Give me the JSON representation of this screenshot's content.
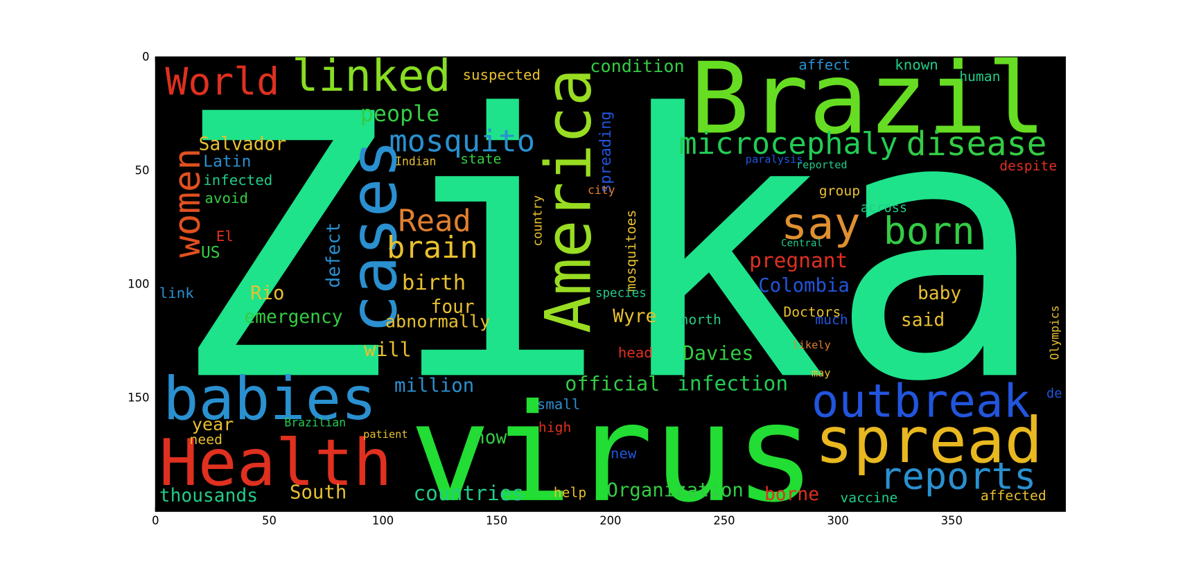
{
  "chart_data": {
    "type": "image",
    "xlim": [
      0,
      400
    ],
    "ylim": [
      0,
      200
    ],
    "y_inverted": true,
    "xticks": [
      0,
      50,
      100,
      150,
      200,
      250,
      300,
      350
    ],
    "yticks": [
      0,
      50,
      100,
      150
    ],
    "background": "#000000",
    "words": [
      {
        "text": "Zika",
        "color": "#1ee38a"
      },
      {
        "text": "virus",
        "color": "#22dd33"
      },
      {
        "text": "Brazil",
        "color": "#66dd22"
      },
      {
        "text": "Health",
        "color": "#e03020"
      },
      {
        "text": "babies",
        "color": "#2a90d0"
      },
      {
        "text": "cases",
        "color": "#2a90d0"
      },
      {
        "text": "America",
        "color": "#99dd22"
      },
      {
        "text": "spread",
        "color": "#e8b820"
      },
      {
        "text": "outbreak",
        "color": "#2255dd"
      },
      {
        "text": "reports",
        "color": "#2a90d0"
      },
      {
        "text": "linked",
        "color": "#88dd22"
      },
      {
        "text": "World",
        "color": "#e03020"
      },
      {
        "text": "mosquito",
        "color": "#2a90d0"
      },
      {
        "text": "microcephaly",
        "color": "#22cc55"
      },
      {
        "text": "disease",
        "color": "#33cc44"
      },
      {
        "text": "say",
        "color": "#e09030"
      },
      {
        "text": "born",
        "color": "#33cc44"
      },
      {
        "text": "women",
        "color": "#e05020"
      },
      {
        "text": "Read",
        "color": "#e08030"
      },
      {
        "text": "brain",
        "color": "#e8c030"
      },
      {
        "text": "people",
        "color": "#33cc44"
      },
      {
        "text": "Salvador",
        "color": "#e8c030"
      },
      {
        "text": "Latin",
        "color": "#2a90d0"
      },
      {
        "text": "infected",
        "color": "#22cc88"
      },
      {
        "text": "avoid",
        "color": "#33cc44"
      },
      {
        "text": "US",
        "color": "#33cc44"
      },
      {
        "text": "El",
        "color": "#e03020"
      },
      {
        "text": "link",
        "color": "#2a90d0"
      },
      {
        "text": "Rio",
        "color": "#e8c030"
      },
      {
        "text": "emergency",
        "color": "#33cc44"
      },
      {
        "text": "birth",
        "color": "#e8c030"
      },
      {
        "text": "four",
        "color": "#e8c030"
      },
      {
        "text": "abnormally",
        "color": "#e8c030"
      },
      {
        "text": "will",
        "color": "#e8c030"
      },
      {
        "text": "defect",
        "color": "#2a90d0"
      },
      {
        "text": "year",
        "color": "#e8c030"
      },
      {
        "text": "need",
        "color": "#e8c030"
      },
      {
        "text": "thousands",
        "color": "#22cc88"
      },
      {
        "text": "South",
        "color": "#e8c030"
      },
      {
        "text": "countries",
        "color": "#22cc88"
      },
      {
        "text": "Organization",
        "color": "#33cc44"
      },
      {
        "text": "help",
        "color": "#e8c030"
      },
      {
        "text": "borne",
        "color": "#e03020"
      },
      {
        "text": "vaccine",
        "color": "#22cc88"
      },
      {
        "text": "affected",
        "color": "#e8c030"
      },
      {
        "text": "million",
        "color": "#2a90d0"
      },
      {
        "text": "official",
        "color": "#33cc44"
      },
      {
        "text": "infection",
        "color": "#22cc55"
      },
      {
        "text": "now",
        "color": "#33cc44"
      },
      {
        "text": "high",
        "color": "#e03020"
      },
      {
        "text": "small",
        "color": "#2a90d0"
      },
      {
        "text": "new",
        "color": "#2255dd"
      },
      {
        "text": "Davies",
        "color": "#33cc44"
      },
      {
        "text": "head",
        "color": "#e03020"
      },
      {
        "text": "Wyre",
        "color": "#e8c030"
      },
      {
        "text": "said",
        "color": "#e8c030"
      },
      {
        "text": "baby",
        "color": "#e8c030"
      },
      {
        "text": "Colombia",
        "color": "#2255dd"
      },
      {
        "text": "pregnant",
        "color": "#e03020"
      },
      {
        "text": "condition",
        "color": "#33cc44"
      },
      {
        "text": "suspected",
        "color": "#e8c030"
      },
      {
        "text": "affect",
        "color": "#2a90d0"
      },
      {
        "text": "known",
        "color": "#22cc88"
      },
      {
        "text": "human",
        "color": "#22cc88"
      },
      {
        "text": "despite",
        "color": "#e03020"
      },
      {
        "text": "group",
        "color": "#e8c030"
      },
      {
        "text": "across",
        "color": "#22cc88"
      },
      {
        "text": "Doctors",
        "color": "#e8c030"
      },
      {
        "text": "north",
        "color": "#22cc88"
      },
      {
        "text": "much",
        "color": "#2255dd"
      },
      {
        "text": "likely",
        "color": "#e08030"
      },
      {
        "text": "may",
        "color": "#e8c030"
      },
      {
        "text": "Indian",
        "color": "#e8c030"
      },
      {
        "text": "state",
        "color": "#33cc44"
      },
      {
        "text": "country",
        "color": "#e8c030"
      },
      {
        "text": "mosquitoes",
        "color": "#e8c030"
      },
      {
        "text": "spreading",
        "color": "#2255dd"
      },
      {
        "text": "Olympics",
        "color": "#e8c030"
      },
      {
        "text": "species",
        "color": "#22cc88"
      },
      {
        "text": "city",
        "color": "#e08030"
      },
      {
        "text": "patient",
        "color": "#e8c030"
      },
      {
        "text": "Brazilian",
        "color": "#22cc55"
      },
      {
        "text": "reported",
        "color": "#22cc88"
      },
      {
        "text": "paralysis",
        "color": "#2255dd"
      },
      {
        "text": "Central",
        "color": "#22cc88"
      },
      {
        "text": "de",
        "color": "#2255dd"
      }
    ]
  }
}
